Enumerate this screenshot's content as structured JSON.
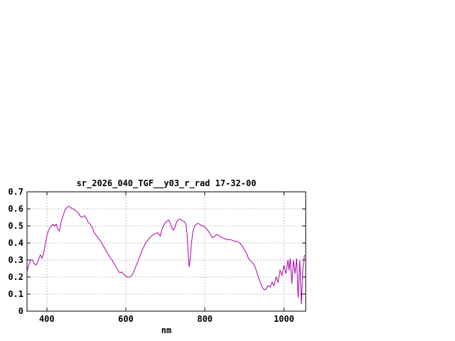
{
  "window": {
    "background": "#ffffff"
  },
  "chart_data": {
    "type": "line",
    "title": "sr_2026_040_TGF__y03_r_rad 17-32-00",
    "xlabel": "nm",
    "ylabel": "",
    "xlim": [
      350,
      1055
    ],
    "ylim": [
      0,
      0.7
    ],
    "grid": true,
    "legend_position": "none",
    "line_color": "#aa00aa",
    "border_color": "#000000",
    "grid_color": "#909090",
    "xticks": {
      "values": [
        400,
        600,
        800,
        1000
      ],
      "labels": [
        "400",
        "600",
        "800",
        "1000"
      ]
    },
    "yticks": {
      "values": [
        0,
        0.1,
        0.2,
        0.3,
        0.4,
        0.5,
        0.6,
        0.7
      ],
      "labels": [
        "0",
        "0.1",
        "0.2",
        "0.3",
        "0.4",
        "0.5",
        "0.6",
        "0.7"
      ]
    },
    "series": [
      {
        "name": "sr_2026_040_TGF__y03_r_rad",
        "points": [
          [
            350,
            0.23
          ],
          [
            353,
            0.26
          ],
          [
            356,
            0.28
          ],
          [
            360,
            0.3
          ],
          [
            364,
            0.3
          ],
          [
            368,
            0.28
          ],
          [
            372,
            0.27
          ],
          [
            376,
            0.28
          ],
          [
            380,
            0.31
          ],
          [
            384,
            0.33
          ],
          [
            388,
            0.31
          ],
          [
            392,
            0.34
          ],
          [
            396,
            0.39
          ],
          [
            400,
            0.44
          ],
          [
            404,
            0.47
          ],
          [
            408,
            0.49
          ],
          [
            412,
            0.5
          ],
          [
            416,
            0.51
          ],
          [
            420,
            0.5
          ],
          [
            424,
            0.51
          ],
          [
            428,
            0.48
          ],
          [
            432,
            0.47
          ],
          [
            436,
            0.52
          ],
          [
            440,
            0.55
          ],
          [
            444,
            0.58
          ],
          [
            448,
            0.6
          ],
          [
            452,
            0.61
          ],
          [
            456,
            0.615
          ],
          [
            460,
            0.61
          ],
          [
            464,
            0.6
          ],
          [
            468,
            0.6
          ],
          [
            472,
            0.59
          ],
          [
            476,
            0.585
          ],
          [
            480,
            0.575
          ],
          [
            484,
            0.56
          ],
          [
            488,
            0.55
          ],
          [
            492,
            0.555
          ],
          [
            496,
            0.56
          ],
          [
            500,
            0.545
          ],
          [
            505,
            0.52
          ],
          [
            510,
            0.51
          ],
          [
            515,
            0.49
          ],
          [
            520,
            0.46
          ],
          [
            525,
            0.445
          ],
          [
            530,
            0.43
          ],
          [
            535,
            0.415
          ],
          [
            540,
            0.395
          ],
          [
            545,
            0.375
          ],
          [
            550,
            0.355
          ],
          [
            555,
            0.335
          ],
          [
            560,
            0.315
          ],
          [
            565,
            0.3
          ],
          [
            570,
            0.28
          ],
          [
            575,
            0.26
          ],
          [
            580,
            0.24
          ],
          [
            585,
            0.225
          ],
          [
            590,
            0.23
          ],
          [
            595,
            0.215
          ],
          [
            600,
            0.205
          ],
          [
            605,
            0.2
          ],
          [
            610,
            0.2
          ],
          [
            615,
            0.21
          ],
          [
            620,
            0.23
          ],
          [
            625,
            0.26
          ],
          [
            630,
            0.29
          ],
          [
            635,
            0.32
          ],
          [
            640,
            0.35
          ],
          [
            645,
            0.375
          ],
          [
            650,
            0.4
          ],
          [
            655,
            0.415
          ],
          [
            660,
            0.43
          ],
          [
            665,
            0.44
          ],
          [
            670,
            0.45
          ],
          [
            675,
            0.455
          ],
          [
            680,
            0.46
          ],
          [
            684,
            0.45
          ],
          [
            687,
            0.44
          ],
          [
            690,
            0.47
          ],
          [
            695,
            0.5
          ],
          [
            700,
            0.52
          ],
          [
            705,
            0.53
          ],
          [
            708,
            0.535
          ],
          [
            712,
            0.52
          ],
          [
            716,
            0.49
          ],
          [
            720,
            0.475
          ],
          [
            724,
            0.49
          ],
          [
            728,
            0.52
          ],
          [
            732,
            0.535
          ],
          [
            736,
            0.54
          ],
          [
            740,
            0.535
          ],
          [
            744,
            0.53
          ],
          [
            748,
            0.525
          ],
          [
            752,
            0.51
          ],
          [
            755,
            0.45
          ],
          [
            758,
            0.33
          ],
          [
            760,
            0.26
          ],
          [
            763,
            0.3
          ],
          [
            766,
            0.4
          ],
          [
            770,
            0.47
          ],
          [
            774,
            0.5
          ],
          [
            778,
            0.51
          ],
          [
            782,
            0.515
          ],
          [
            786,
            0.51
          ],
          [
            790,
            0.505
          ],
          [
            795,
            0.5
          ],
          [
            800,
            0.495
          ],
          [
            805,
            0.48
          ],
          [
            810,
            0.465
          ],
          [
            815,
            0.445
          ],
          [
            820,
            0.43
          ],
          [
            825,
            0.44
          ],
          [
            830,
            0.45
          ],
          [
            835,
            0.445
          ],
          [
            840,
            0.435
          ],
          [
            845,
            0.43
          ],
          [
            850,
            0.425
          ],
          [
            855,
            0.42
          ],
          [
            860,
            0.42
          ],
          [
            865,
            0.42
          ],
          [
            870,
            0.415
          ],
          [
            875,
            0.41
          ],
          [
            880,
            0.41
          ],
          [
            885,
            0.405
          ],
          [
            890,
            0.395
          ],
          [
            895,
            0.38
          ],
          [
            900,
            0.36
          ],
          [
            905,
            0.34
          ],
          [
            910,
            0.31
          ],
          [
            915,
            0.295
          ],
          [
            920,
            0.285
          ],
          [
            925,
            0.27
          ],
          [
            930,
            0.24
          ],
          [
            935,
            0.2
          ],
          [
            940,
            0.17
          ],
          [
            945,
            0.14
          ],
          [
            950,
            0.125
          ],
          [
            955,
            0.13
          ],
          [
            960,
            0.15
          ],
          [
            965,
            0.14
          ],
          [
            970,
            0.17
          ],
          [
            975,
            0.15
          ],
          [
            980,
            0.2
          ],
          [
            985,
            0.17
          ],
          [
            990,
            0.24
          ],
          [
            995,
            0.21
          ],
          [
            1000,
            0.27
          ],
          [
            1005,
            0.22
          ],
          [
            1010,
            0.3
          ],
          [
            1013,
            0.24
          ],
          [
            1016,
            0.31
          ],
          [
            1020,
            0.16
          ],
          [
            1024,
            0.3
          ],
          [
            1028,
            0.22
          ],
          [
            1032,
            0.31
          ],
          [
            1036,
            0.08
          ],
          [
            1040,
            0.3
          ],
          [
            1044,
            0.04
          ],
          [
            1048,
            0.25
          ],
          [
            1052,
            0.33
          ]
        ]
      }
    ]
  }
}
